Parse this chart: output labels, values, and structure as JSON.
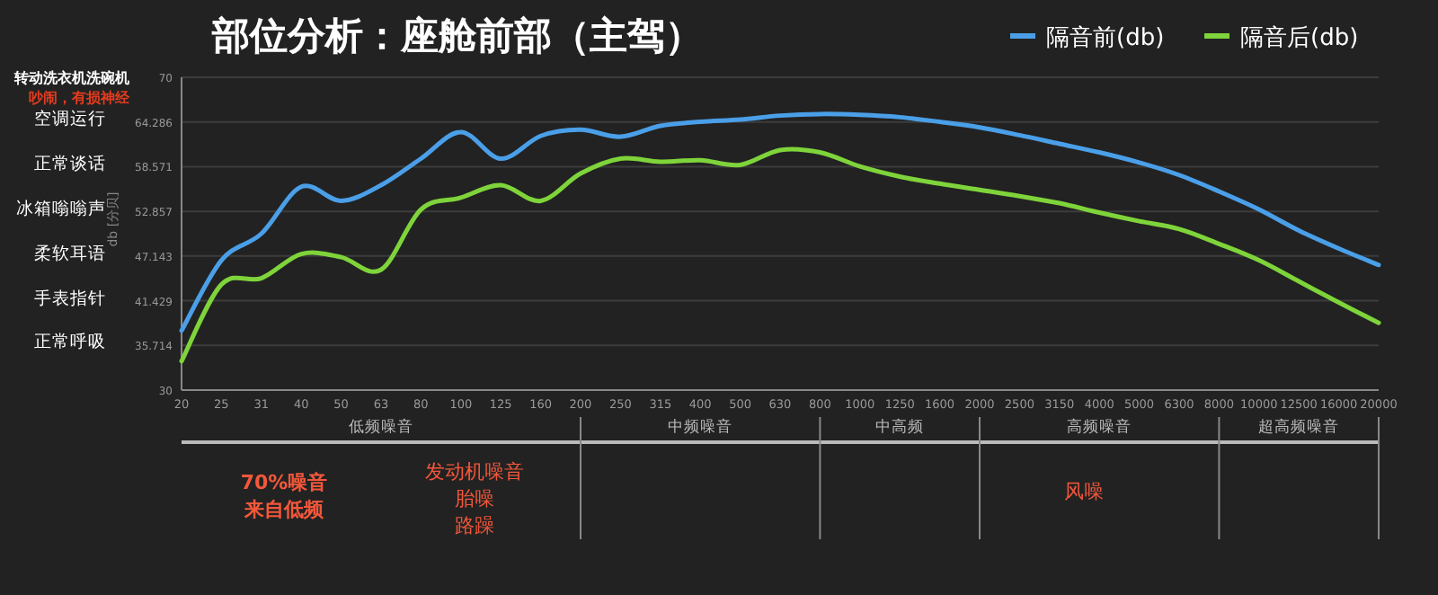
{
  "chart_data": {
    "type": "line",
    "title": "部位分析：座舱前部（主驾）",
    "ylabel": "db [分贝]",
    "categories": [
      "20",
      "25",
      "31",
      "40",
      "50",
      "63",
      "80",
      "100",
      "125",
      "160",
      "200",
      "250",
      "315",
      "400",
      "500",
      "630",
      "800",
      "1000",
      "1250",
      "1600",
      "2000",
      "2500",
      "3150",
      "4000",
      "5000",
      "6300",
      "8000",
      "10000",
      "12500",
      "16000",
      "20000"
    ],
    "series": [
      {
        "name": "隔音前(db)",
        "color": "#4a9fe8",
        "values": [
          37.6,
          46.6,
          50.0,
          56.0,
          54.2,
          56.2,
          59.6,
          63.0,
          59.6,
          62.5,
          63.3,
          62.4,
          63.8,
          64.3,
          64.6,
          65.1,
          65.3,
          65.2,
          64.9,
          64.3,
          63.6,
          62.6,
          61.5,
          60.4,
          59.1,
          57.5,
          55.4,
          53.1,
          50.4,
          48.1,
          46.0
        ]
      },
      {
        "name": "隔音后(db)",
        "color": "#7ed43a",
        "values": [
          33.7,
          43.5,
          44.3,
          47.4,
          47.0,
          45.4,
          53.1,
          54.6,
          56.2,
          54.2,
          57.7,
          59.6,
          59.2,
          59.4,
          58.8,
          60.7,
          60.4,
          58.6,
          57.3,
          56.4,
          55.6,
          54.8,
          53.9,
          52.7,
          51.6,
          50.6,
          48.7,
          46.6,
          43.9,
          41.2,
          38.6
        ]
      }
    ],
    "ylim": [
      30,
      70
    ],
    "yticks": [
      30,
      35.714,
      41.429,
      47.143,
      52.857,
      58.571,
      64.286,
      70
    ],
    "grid": "y",
    "legend": "top right",
    "marker": "none",
    "line_style": "solid",
    "annotations": [
      "转动洗衣机洗碗机",
      "吵闹，有损神经",
      "空调运行",
      "正常谈话",
      "冰箱嗡嗡声",
      "柔软耳语",
      "手表指针",
      "正常呼吸",
      "低频噪音",
      "中频噪音",
      "中高频",
      "高频噪音",
      "超高频噪音",
      "70%噪音",
      "来自低频",
      "发动机噪音",
      "胎噪",
      "路躁",
      "风噪"
    ]
  }
}
